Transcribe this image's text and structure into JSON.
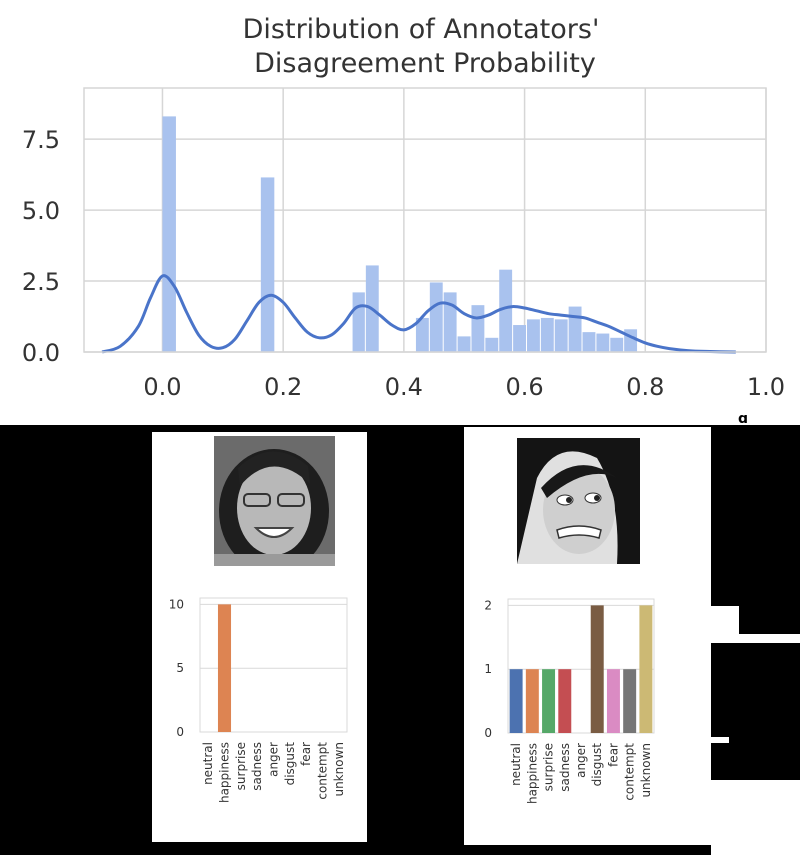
{
  "main_chart": {
    "title_line1": "Distribution of Annotators'",
    "title_line2": "Disagreement Probability",
    "y_ticks": [
      "0.0",
      "2.5",
      "5.0",
      "7.5"
    ],
    "x_ticks": [
      "0.0",
      "0.2",
      "0.4",
      "0.6",
      "0.8",
      "1.0"
    ],
    "bar_color": "#a9c2ee",
    "kde_color": "#4a74c9"
  },
  "chart_data": [
    {
      "type": "bar",
      "title": "Distribution of Annotators' Disagreement Probability",
      "xlabel": "",
      "ylabel": "",
      "xlim": [
        -0.13,
        1.0
      ],
      "ylim": [
        0,
        9.3
      ],
      "bins": [
        {
          "x0": 0.0,
          "x1": 0.024,
          "value": 8.3
        },
        {
          "x0": 0.163,
          "x1": 0.187,
          "value": 6.15
        },
        {
          "x0": 0.315,
          "x1": 0.337,
          "value": 2.1
        },
        {
          "x0": 0.337,
          "x1": 0.36,
          "value": 3.05
        },
        {
          "x0": 0.42,
          "x1": 0.443,
          "value": 1.2
        },
        {
          "x0": 0.443,
          "x1": 0.466,
          "value": 2.45
        },
        {
          "x0": 0.466,
          "x1": 0.489,
          "value": 2.1
        },
        {
          "x0": 0.489,
          "x1": 0.512,
          "value": 0.55
        },
        {
          "x0": 0.512,
          "x1": 0.535,
          "value": 1.65
        },
        {
          "x0": 0.535,
          "x1": 0.558,
          "value": 0.5
        },
        {
          "x0": 0.558,
          "x1": 0.581,
          "value": 2.9
        },
        {
          "x0": 0.581,
          "x1": 0.604,
          "value": 0.95
        },
        {
          "x0": 0.604,
          "x1": 0.627,
          "value": 1.15
        },
        {
          "x0": 0.627,
          "x1": 0.65,
          "value": 1.2
        },
        {
          "x0": 0.65,
          "x1": 0.673,
          "value": 1.15
        },
        {
          "x0": 0.673,
          "x1": 0.696,
          "value": 1.6
        },
        {
          "x0": 0.696,
          "x1": 0.719,
          "value": 0.7
        },
        {
          "x0": 0.719,
          "x1": 0.742,
          "value": 0.65
        },
        {
          "x0": 0.742,
          "x1": 0.765,
          "value": 0.5
        },
        {
          "x0": 0.765,
          "x1": 0.788,
          "value": 0.8
        }
      ],
      "kde": {
        "x": [
          -0.1,
          -0.07,
          -0.04,
          -0.02,
          0.0,
          0.02,
          0.04,
          0.06,
          0.08,
          0.1,
          0.12,
          0.14,
          0.16,
          0.18,
          0.2,
          0.22,
          0.24,
          0.26,
          0.28,
          0.3,
          0.32,
          0.34,
          0.36,
          0.38,
          0.4,
          0.42,
          0.44,
          0.46,
          0.48,
          0.5,
          0.52,
          0.54,
          0.56,
          0.58,
          0.6,
          0.62,
          0.64,
          0.66,
          0.68,
          0.7,
          0.72,
          0.74,
          0.76,
          0.78,
          0.8,
          0.82,
          0.84,
          0.87,
          0.9,
          0.95
        ],
        "y": [
          0.0,
          0.2,
          0.9,
          1.9,
          2.68,
          2.3,
          1.4,
          0.6,
          0.2,
          0.15,
          0.45,
          1.1,
          1.75,
          2.0,
          1.75,
          1.2,
          0.7,
          0.5,
          0.6,
          1.0,
          1.55,
          1.6,
          1.3,
          0.95,
          0.78,
          1.0,
          1.45,
          1.72,
          1.65,
          1.35,
          1.2,
          1.3,
          1.5,
          1.6,
          1.55,
          1.45,
          1.35,
          1.3,
          1.25,
          1.2,
          1.05,
          0.9,
          0.7,
          0.5,
          0.32,
          0.2,
          0.12,
          0.05,
          0.02,
          0.0
        ]
      }
    },
    {
      "type": "bar",
      "title": "",
      "categories": [
        "neutral",
        "happiness",
        "surprise",
        "sadness",
        "anger",
        "disgust",
        "fear",
        "contempt",
        "unknown"
      ],
      "values": [
        0,
        10,
        0,
        0,
        0,
        0,
        0,
        0,
        0
      ],
      "y_ticks": [
        "0",
        "5",
        "10"
      ],
      "ylim": [
        0,
        10.5
      ]
    },
    {
      "type": "bar",
      "title": "",
      "categories": [
        "neutral",
        "happiness",
        "surprise",
        "sadness",
        "anger",
        "disgust",
        "fear",
        "contempt",
        "unknown"
      ],
      "values": [
        1,
        1,
        1,
        1,
        0,
        2,
        1,
        1,
        2
      ],
      "y_ticks": [
        "0",
        "1",
        "2"
      ],
      "ylim": [
        0,
        2.1
      ]
    }
  ],
  "category_colors": [
    "#4c72b0",
    "#dd8452",
    "#55a868",
    "#c44e52",
    "#8172b3",
    "#7a5c43",
    "#da8bc3",
    "#767676",
    "#ccb974"
  ],
  "panels": [
    {
      "face_name": "smiling-woman-face"
    },
    {
      "face_name": "grimacing-woman-face"
    }
  ]
}
